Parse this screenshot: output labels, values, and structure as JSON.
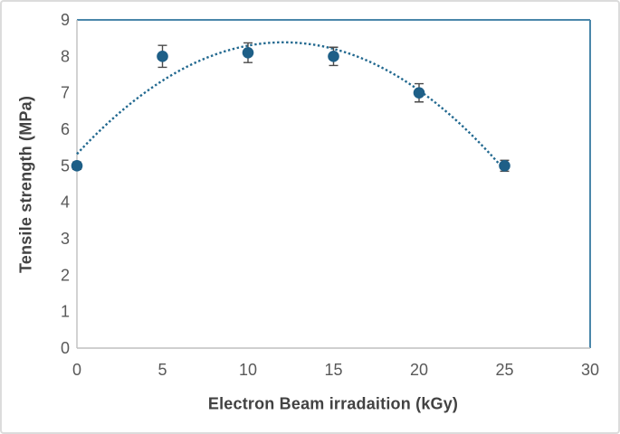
{
  "chart_data": {
    "type": "scatter",
    "title": "",
    "xlabel": "Electron Beam irradaition (kGy)",
    "ylabel": "Tensile strength (MPa)",
    "x": [
      0,
      5,
      10,
      15,
      20,
      25
    ],
    "y": [
      5.0,
      8.0,
      8.1,
      8.0,
      7.0,
      5.0
    ],
    "y_error": [
      0.1,
      0.3,
      0.27,
      0.25,
      0.25,
      0.15
    ],
    "xlim": [
      0,
      30
    ],
    "ylim": [
      0,
      9
    ],
    "x_ticks": [
      "0",
      "5",
      "10",
      "15",
      "20",
      "25",
      "30"
    ],
    "y_ticks": [
      "0",
      "1",
      "2",
      "3",
      "4",
      "5",
      "6",
      "7",
      "8",
      "9"
    ],
    "grid": false,
    "legend_position": "none",
    "trendline": {
      "type": "quadratic",
      "style": "dotted",
      "coefficients": {
        "a": 5.3215,
        "b": 0.5073,
        "c": -0.021
      },
      "x_range": [
        0,
        25
      ]
    },
    "colors": {
      "marker": "#1E5F87",
      "trendline": "#21688F",
      "error_bar": "#4A4A4A",
      "axis_line": "#BFBFBF",
      "plot_border": "#4A87AA",
      "tick_label": "#595959",
      "axis_title": "#424242"
    }
  }
}
